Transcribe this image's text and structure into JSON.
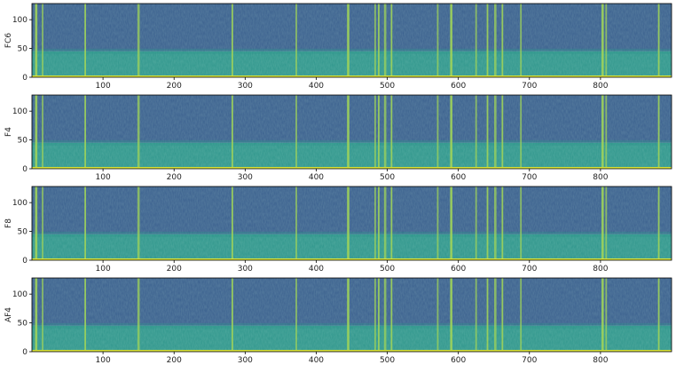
{
  "chart_data": [
    {
      "type": "heatmap",
      "ylabel": "FC6",
      "xlim": [
        0,
        900
      ],
      "ylim": [
        0,
        128
      ],
      "xticks": [
        100,
        200,
        300,
        400,
        500,
        600,
        700,
        800
      ],
      "yticks": [
        0,
        50,
        100
      ],
      "band_edge_hz": 45,
      "bright_columns": [
        6,
        15,
        75,
        150,
        282,
        372,
        445,
        483,
        488,
        497,
        506,
        571,
        590,
        625,
        641,
        652,
        662,
        688,
        803,
        808,
        882
      ]
    },
    {
      "type": "heatmap",
      "ylabel": "F4",
      "xlim": [
        0,
        900
      ],
      "ylim": [
        0,
        128
      ],
      "xticks": [
        100,
        200,
        300,
        400,
        500,
        600,
        700,
        800
      ],
      "yticks": [
        0,
        50,
        100
      ],
      "band_edge_hz": 45,
      "bright_columns": [
        6,
        15,
        75,
        150,
        282,
        372,
        445,
        483,
        488,
        497,
        506,
        571,
        590,
        625,
        641,
        652,
        662,
        688,
        803,
        808,
        882
      ]
    },
    {
      "type": "heatmap",
      "ylabel": "F8",
      "xlim": [
        0,
        900
      ],
      "ylim": [
        0,
        128
      ],
      "xticks": [
        100,
        200,
        300,
        400,
        500,
        600,
        700,
        800
      ],
      "yticks": [
        0,
        50,
        100
      ],
      "band_edge_hz": 45,
      "bright_columns": [
        6,
        15,
        75,
        150,
        282,
        372,
        445,
        483,
        488,
        497,
        506,
        571,
        590,
        625,
        641,
        652,
        662,
        688,
        803,
        808,
        882
      ]
    },
    {
      "type": "heatmap",
      "ylabel": "AF4",
      "xlim": [
        0,
        900
      ],
      "ylim": [
        0,
        128
      ],
      "xticks": [
        100,
        200,
        300,
        400,
        500,
        600,
        700,
        800
      ],
      "yticks": [
        0,
        50,
        100
      ],
      "band_edge_hz": 45,
      "bright_columns": [
        6,
        15,
        75,
        150,
        282,
        372,
        445,
        483,
        488,
        497,
        506,
        571,
        590,
        625,
        641,
        652,
        662,
        688,
        803,
        808,
        882
      ]
    }
  ],
  "colors": {
    "high_band": "#3a5f8e",
    "low_band": "#2f968c",
    "baseline": "#d9e33a",
    "bright_line": "#9fd35a"
  }
}
